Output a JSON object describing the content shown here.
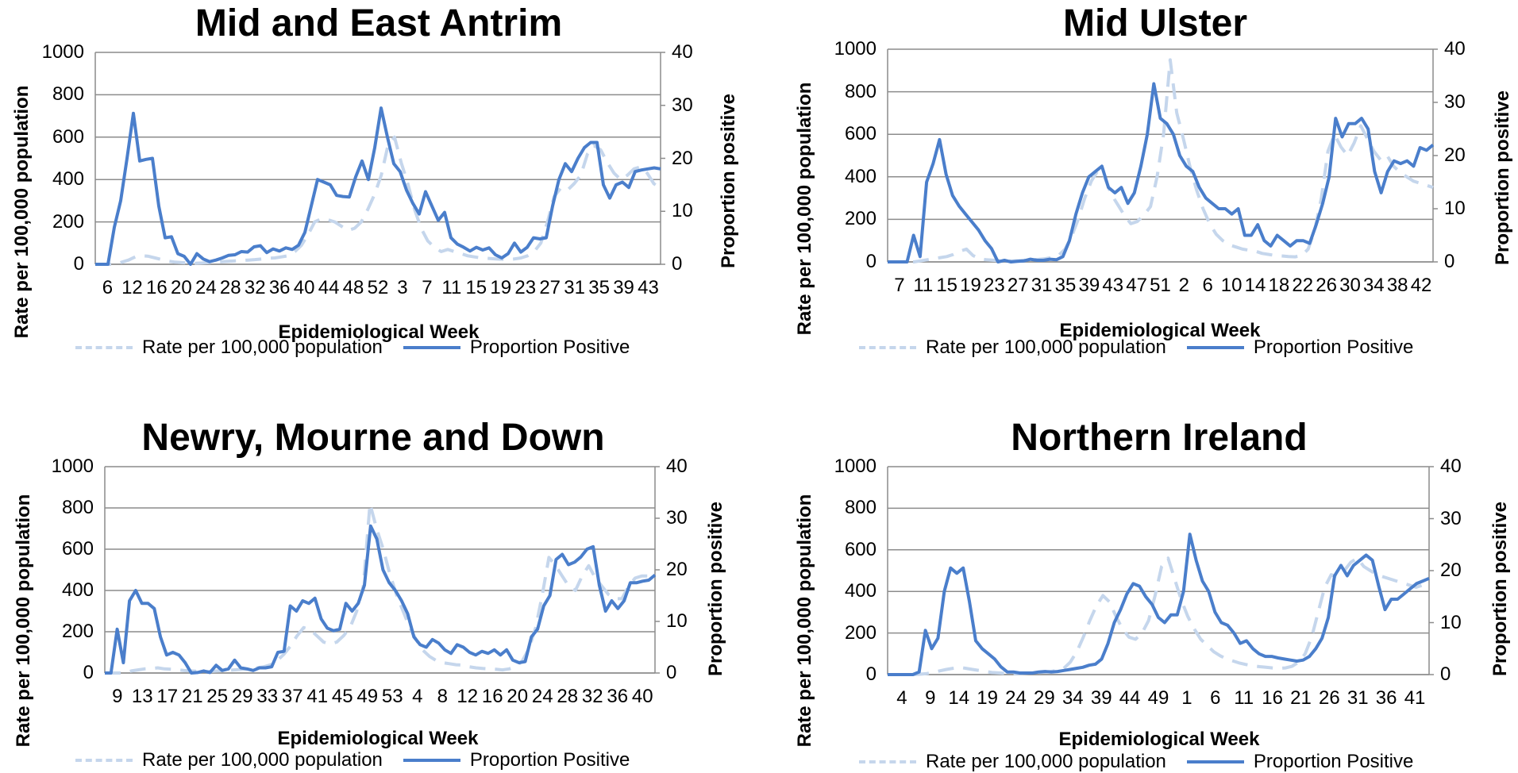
{
  "chart_data": [
    {
      "type": "line",
      "title": "Mid and East Antrim",
      "xlabel": "Epidemiological Week",
      "ylabel_left": "Rate per 100,000 population",
      "ylabel_right": "Proportion positive",
      "ylim_left": [
        0,
        1000
      ],
      "ylim_right": [
        0,
        40
      ],
      "yticks_left": [
        "0",
        "200",
        "400",
        "600",
        "800",
        "1000"
      ],
      "yticks_right": [
        "0",
        "10",
        "20",
        "30",
        "40"
      ],
      "x_tick_labels": [
        "6",
        "12",
        "16",
        "20",
        "24",
        "28",
        "32",
        "36",
        "40",
        "44",
        "48",
        "52",
        "3",
        "7",
        "11",
        "15",
        "19",
        "23",
        "27",
        "31",
        "35",
        "39",
        "43"
      ],
      "grid": true,
      "legend_position": "bottom",
      "series": [
        {
          "name": "Rate per 100,000 population",
          "axis": "left",
          "style": "dashed",
          "color": "#c5d6ec",
          "values": [
            0,
            0,
            0,
            0,
            10,
            20,
            35,
            40,
            38,
            30,
            22,
            15,
            10,
            8,
            6,
            5,
            6,
            8,
            10,
            12,
            14,
            16,
            18,
            20,
            22,
            25,
            28,
            30,
            35,
            40,
            60,
            90,
            140,
            200,
            215,
            210,
            200,
            180,
            160,
            170,
            200,
            260,
            330,
            420,
            560,
            600,
            480,
            380,
            260,
            170,
            110,
            80,
            60,
            70,
            60,
            50,
            40,
            35,
            30,
            28,
            26,
            24,
            22,
            25,
            30,
            40,
            60,
            100,
            200,
            320,
            360,
            350,
            380,
            420,
            520,
            560,
            540,
            480,
            430,
            400,
            420,
            450,
            460,
            430,
            380,
            360
          ]
        },
        {
          "name": "Proportion Positive",
          "axis": "right",
          "style": "solid",
          "color": "#4a7ecb",
          "values": [
            0,
            0,
            0,
            7,
            12,
            20,
            28.5,
            19.5,
            19.8,
            20,
            11,
            5,
            5.2,
            2,
            1.5,
            0,
            2,
            1,
            0.5,
            0.8,
            1.2,
            1.7,
            1.8,
            2.4,
            2.3,
            3.3,
            3.5,
            2.2,
            2.9,
            2.5,
            3.1,
            2.8,
            3.6,
            6,
            11,
            16,
            15.5,
            15,
            13,
            12.8,
            12.7,
            16.5,
            19.5,
            16,
            22,
            29.5,
            24,
            19,
            17.5,
            14,
            11.5,
            9.5,
            13.7,
            11,
            8.3,
            9.8,
            5,
            3.8,
            3.2,
            2.5,
            3.2,
            2.7,
            3.1,
            1.8,
            1.2,
            2,
            4,
            2.3,
            3.2,
            5,
            4.8,
            5,
            11,
            16,
            19,
            17.5,
            20,
            22,
            23,
            23,
            15,
            12.5,
            15,
            15.5,
            14.5,
            17.5,
            17.8,
            18,
            18.2,
            18
          ]
        }
      ]
    },
    {
      "type": "line",
      "title": "Mid Ulster",
      "xlabel": "Epidemiological Week",
      "ylabel_left": "Rate per 100,000 population",
      "ylabel_right": "Proportion positive",
      "ylim_left": [
        0,
        1000
      ],
      "ylim_right": [
        0,
        40
      ],
      "yticks_left": [
        "0",
        "200",
        "400",
        "600",
        "800",
        "1000"
      ],
      "yticks_right": [
        "0",
        "10",
        "20",
        "30",
        "40"
      ],
      "x_tick_labels": [
        "7",
        "11",
        "15",
        "19",
        "23",
        "27",
        "31",
        "35",
        "39",
        "43",
        "47",
        "51",
        "2",
        "6",
        "10",
        "14",
        "18",
        "22",
        "26",
        "30",
        "34",
        "38",
        "42"
      ],
      "grid": true,
      "legend_position": "bottom",
      "series": [
        {
          "name": "Rate per 100,000 population",
          "axis": "left",
          "style": "dashed",
          "color": "#c5d6ec",
          "values": [
            0,
            0,
            0,
            0,
            0,
            5,
            10,
            15,
            20,
            25,
            35,
            50,
            60,
            30,
            15,
            10,
            8,
            6,
            5,
            5,
            6,
            8,
            10,
            12,
            15,
            20,
            30,
            60,
            120,
            200,
            300,
            380,
            430,
            400,
            320,
            270,
            220,
            180,
            190,
            220,
            260,
            400,
            600,
            950,
            700,
            580,
            450,
            340,
            250,
            180,
            130,
            100,
            80,
            70,
            60,
            55,
            50,
            40,
            35,
            30,
            28,
            25,
            24,
            30,
            60,
            150,
            300,
            520,
            600,
            540,
            500,
            560,
            640,
            580,
            520,
            480,
            500,
            450,
            420,
            400,
            380,
            370,
            360,
            350
          ]
        },
        {
          "name": "Proportion Positive",
          "axis": "right",
          "style": "solid",
          "color": "#4a7ecb",
          "values": [
            0,
            0,
            0,
            0,
            5,
            1,
            15,
            18.5,
            23,
            16.5,
            12.5,
            10.5,
            9,
            7.5,
            6,
            4,
            2.5,
            0,
            0.3,
            0,
            0.1,
            0.2,
            0.5,
            0.3,
            0.3,
            0.5,
            0.4,
            1,
            4,
            9,
            13,
            16,
            17,
            18,
            14,
            13,
            14,
            11,
            13,
            18,
            24,
            33.5,
            27,
            26,
            24,
            20,
            18,
            17,
            14,
            12,
            11,
            10,
            10,
            9,
            10,
            5,
            5,
            7,
            4,
            3,
            5,
            4,
            3,
            4,
            4,
            3.5,
            7,
            11,
            16,
            27,
            23.5,
            26,
            26,
            27,
            25,
            17,
            13,
            17,
            19,
            18.5,
            19,
            18,
            21.5,
            21,
            22
          ]
        }
      ]
    },
    {
      "type": "line",
      "title": "Newry, Mourne and Down",
      "xlabel": "Epidemiological Week",
      "ylabel_left": "Rate per 100,000 population",
      "ylabel_right": "Proportion positive",
      "ylim_left": [
        0,
        1000
      ],
      "ylim_right": [
        0,
        40
      ],
      "yticks_left": [
        "0",
        "200",
        "400",
        "600",
        "800",
        "1000"
      ],
      "yticks_right": [
        "0",
        "10",
        "20",
        "30",
        "40"
      ],
      "x_tick_labels": [
        "9",
        "13",
        "17",
        "21",
        "25",
        "29",
        "33",
        "37",
        "41",
        "45",
        "49",
        "53",
        "4",
        "8",
        "12",
        "16",
        "20",
        "24",
        "28",
        "32",
        "36",
        "40"
      ],
      "grid": true,
      "legend_position": "bottom",
      "series": [
        {
          "name": "Rate per 100,000 population",
          "axis": "left",
          "style": "dashed",
          "color": "#c5d6ec",
          "values": [
            0,
            0,
            0,
            0,
            10,
            15,
            20,
            22,
            25,
            20,
            18,
            15,
            12,
            10,
            8,
            6,
            8,
            10,
            12,
            14,
            16,
            18,
            20,
            25,
            30,
            40,
            60,
            90,
            130,
            180,
            220,
            210,
            180,
            150,
            140,
            150,
            180,
            220,
            300,
            420,
            820,
            700,
            600,
            480,
            380,
            300,
            220,
            160,
            110,
            80,
            60,
            50,
            45,
            40,
            38,
            30,
            25,
            22,
            20,
            18,
            15,
            20,
            30,
            60,
            120,
            220,
            380,
            560,
            520,
            470,
            420,
            400,
            470,
            520,
            460,
            420,
            380,
            360,
            360,
            420,
            460,
            470,
            470,
            460
          ]
        },
        {
          "name": "Proportion Positive",
          "axis": "right",
          "style": "solid",
          "color": "#4a7ecb",
          "values": [
            0,
            0,
            8.5,
            2,
            14,
            16,
            13.5,
            13.5,
            12.5,
            7,
            3.5,
            4,
            3.5,
            2,
            0,
            0.1,
            0.4,
            0.1,
            1.5,
            0.5,
            0.8,
            2.5,
            1,
            0.8,
            0.5,
            1,
            1,
            1.2,
            4,
            4.2,
            13,
            12,
            14,
            13.5,
            14.5,
            10.5,
            8.7,
            8.2,
            8.5,
            13.5,
            12,
            13.5,
            17,
            28.5,
            26,
            20,
            17.5,
            16,
            14,
            11.5,
            7,
            5.5,
            5,
            6.5,
            5.8,
            4.5,
            3.8,
            5.5,
            5,
            4,
            3.5,
            4.2,
            3.8,
            4.5,
            3.5,
            4.5,
            2.5,
            2,
            2.2,
            7,
            8.5,
            13,
            15,
            22,
            23,
            21,
            21.5,
            22.5,
            24,
            24.5,
            17,
            12,
            14,
            12.5,
            14,
            17.5,
            17.5,
            17.8,
            18,
            19
          ]
        }
      ]
    },
    {
      "type": "line",
      "title": "Northern Ireland",
      "xlabel": "Epidemiological Week",
      "ylabel_left": "Rate per 100,000 population",
      "ylabel_right": "Proportion positive",
      "ylim_left": [
        0,
        1000
      ],
      "ylim_right": [
        0,
        40
      ],
      "yticks_left": [
        "0",
        "200",
        "400",
        "600",
        "800",
        "1000"
      ],
      "yticks_right": [
        "0",
        "10",
        "20",
        "30",
        "40"
      ],
      "x_tick_labels": [
        "4",
        "9",
        "14",
        "19",
        "24",
        "29",
        "34",
        "39",
        "44",
        "49",
        "1",
        "6",
        "11",
        "16",
        "21",
        "26",
        "31",
        "36",
        "41"
      ],
      "grid": true,
      "legend_position": "bottom",
      "series": [
        {
          "name": "Rate per 100,000 population",
          "axis": "left",
          "style": "dashed",
          "color": "#c5d6ec",
          "values": [
            0,
            0,
            0,
            0,
            0,
            2,
            5,
            10,
            18,
            25,
            30,
            35,
            30,
            25,
            20,
            15,
            10,
            8,
            6,
            5,
            5,
            6,
            8,
            10,
            12,
            15,
            20,
            30,
            60,
            110,
            180,
            260,
            330,
            380,
            350,
            280,
            220,
            180,
            170,
            200,
            260,
            380,
            520,
            560,
            460,
            360,
            280,
            220,
            170,
            140,
            110,
            90,
            75,
            65,
            55,
            48,
            42,
            38,
            35,
            32,
            30,
            32,
            40,
            60,
            100,
            180,
            300,
            420,
            480,
            470,
            500,
            540,
            560,
            520,
            500,
            480,
            470,
            460,
            450,
            440,
            430,
            420,
            430,
            440
          ]
        },
        {
          "name": "Proportion Positive",
          "axis": "right",
          "style": "solid",
          "color": "#4a7ecb",
          "values": [
            0,
            0,
            0,
            0,
            0,
            0.5,
            8.5,
            5,
            7,
            16,
            20.5,
            19.5,
            20.5,
            14,
            6.5,
            5,
            4,
            3,
            1.5,
            0.5,
            0.5,
            0.3,
            0.3,
            0.3,
            0.5,
            0.6,
            0.5,
            0.6,
            0.8,
            1,
            1.2,
            1.4,
            1.8,
            2,
            3,
            6,
            10,
            12.5,
            15.5,
            17.5,
            17,
            15,
            13.5,
            11,
            10,
            11.5,
            11.5,
            16,
            27,
            22,
            18,
            16,
            12,
            10,
            9.5,
            8,
            6,
            6.5,
            5,
            4,
            3.5,
            3.5,
            3.2,
            3,
            2.8,
            2.6,
            2.8,
            3.5,
            5,
            7,
            11,
            19,
            21,
            19,
            21,
            22,
            23,
            22,
            17,
            12.5,
            14.5,
            14.5,
            15.5,
            16.5,
            17.5,
            18,
            18.5
          ]
        }
      ]
    }
  ]
}
